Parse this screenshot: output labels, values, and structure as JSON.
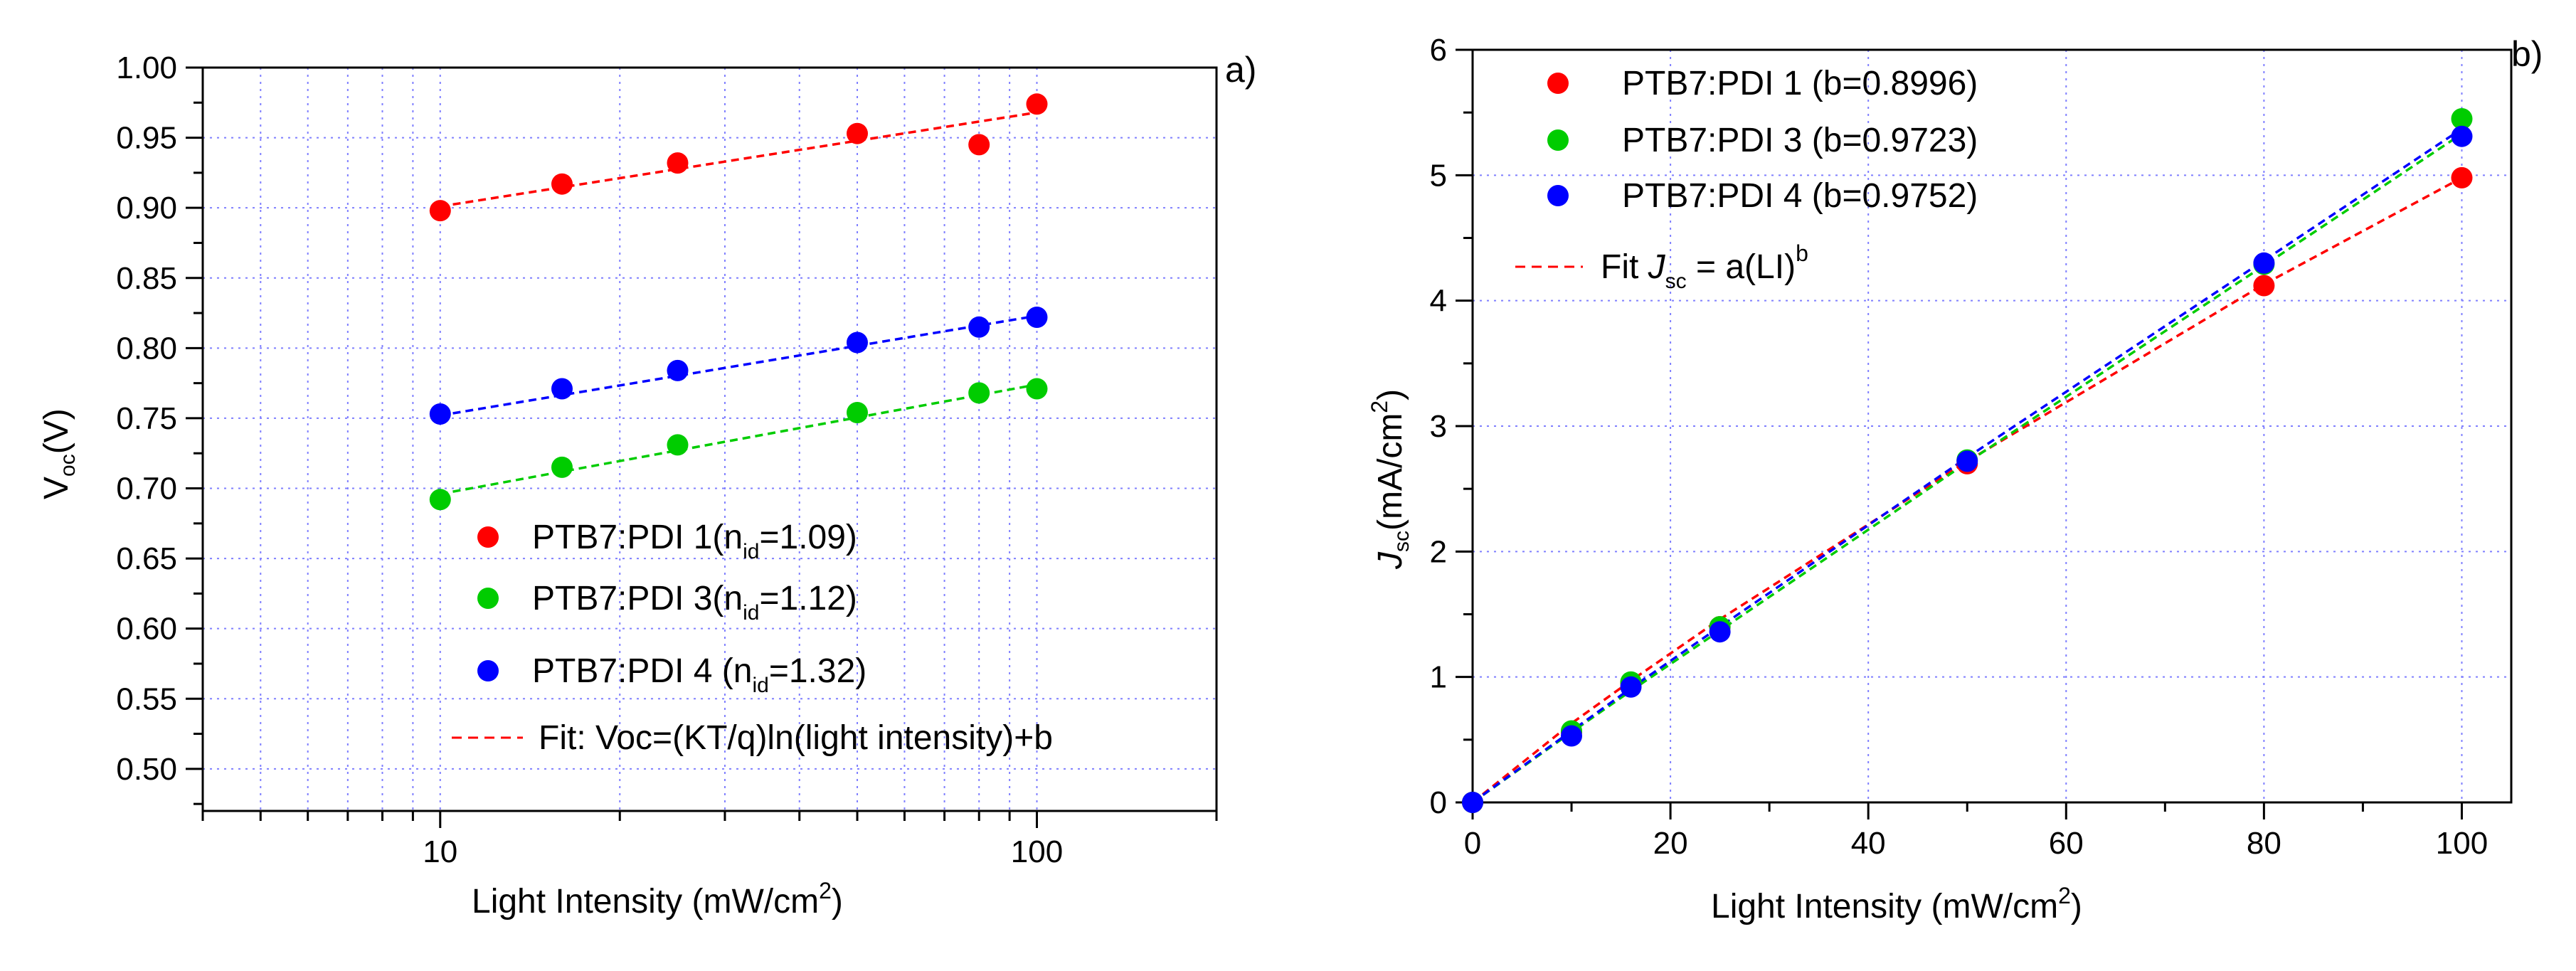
{
  "chart_data": [
    {
      "type": "scatter",
      "panel_label": "a)",
      "xscale": "log",
      "xlim": [
        4,
        200
      ],
      "ylim": [
        0.47,
        1.0
      ],
      "xticks": [
        10,
        100
      ],
      "xtick_labels": [
        "10",
        "100"
      ],
      "yticks": [
        0.5,
        0.55,
        0.6,
        0.65,
        0.7,
        0.75,
        0.8,
        0.85,
        0.9,
        0.95,
        1.0
      ],
      "ytick_labels": [
        "0.50",
        "0.55",
        "0.60",
        "0.65",
        "0.70",
        "0.75",
        "0.80",
        "0.85",
        "0.90",
        "0.95",
        "1.00"
      ],
      "xlabel": {
        "main": "Light Intensity (mW/cm",
        "sup": "2",
        "end": ")"
      },
      "ylabel": {
        "main": "V",
        "sub": "oc",
        "end": "(V)"
      },
      "grid": true,
      "legend_position": "lower-right",
      "series": [
        {
          "name": "PTB7:PDI 1",
          "legend": {
            "pre": "PTB7:PDI 1(n",
            "sub": "id",
            "post": "=1.09)"
          },
          "color": "#ff0000",
          "x": [
            10,
            16,
            25,
            50,
            80,
            100
          ],
          "y": [
            0.898,
            0.917,
            0.932,
            0.953,
            0.945,
            0.974
          ],
          "fit": {
            "x": [
              10,
              100
            ],
            "y": [
              0.901,
              0.968
            ]
          }
        },
        {
          "name": "PTB7:PDI 3",
          "legend": {
            "pre": "PTB7:PDI 3(n",
            "sub": "id",
            "post": "=1.12)"
          },
          "color": "#00cc00",
          "x": [
            10,
            16,
            25,
            50,
            80,
            100
          ],
          "y": [
            0.692,
            0.715,
            0.731,
            0.754,
            0.768,
            0.771
          ],
          "fit": {
            "x": [
              10,
              100
            ],
            "y": [
              0.696,
              0.774
            ]
          }
        },
        {
          "name": "PTB7:PDI 4",
          "legend": {
            "pre": "PTB7:PDI 4 (n",
            "sub": "id",
            "post": "=1.32)"
          },
          "color": "#0000ff",
          "x": [
            10,
            16,
            25,
            50,
            80,
            100
          ],
          "y": [
            0.753,
            0.771,
            0.784,
            0.804,
            0.815,
            0.822
          ],
          "fit": {
            "x": [
              10,
              100
            ],
            "y": [
              0.752,
              0.823
            ]
          }
        }
      ],
      "fit_legend": {
        "text": "Fit: Voc=(KT/q)ln(light intensity)+b",
        "color": "#ff0000"
      }
    },
    {
      "type": "scatter",
      "panel_label": "b)",
      "xlim": [
        0,
        105
      ],
      "ylim": [
        0,
        6
      ],
      "xticks": [
        0,
        20,
        40,
        60,
        80,
        100
      ],
      "xtick_labels": [
        "0",
        "20",
        "40",
        "60",
        "80",
        "100"
      ],
      "yticks": [
        0,
        1,
        2,
        3,
        4,
        5,
        6
      ],
      "ytick_labels": [
        "0",
        "1",
        "2",
        "3",
        "4",
        "5",
        "6"
      ],
      "xlabel": {
        "main": "Light Intensity (mW/cm",
        "sup": "2",
        "end": ")"
      },
      "ylabel": {
        "main": "J",
        "sub": "sc",
        "mid": "(mA/cm",
        "sup": "2",
        "end": ")"
      },
      "grid": true,
      "legend_position": "top-left",
      "series": [
        {
          "name": "PTB7:PDI 1",
          "legend": {
            "text": "PTB7:PDI 1 (b=0.8996)"
          },
          "color": "#ff0000",
          "x": [
            0,
            10,
            16,
            25,
            50,
            80,
            100
          ],
          "y": [
            0,
            0.56,
            0.95,
            1.4,
            2.7,
            4.12,
            4.98
          ],
          "fit": {
            "x": [
              0,
              10,
              16,
              25,
              50,
              80,
              100
            ],
            "y": [
              0,
              0.63,
              0.97,
              1.46,
              2.72,
              4.13,
              4.98
            ]
          }
        },
        {
          "name": "PTB7:PDI 3",
          "legend": {
            "text": "PTB7:PDI 3 (b=0.9723)"
          },
          "color": "#00cc00",
          "x": [
            0,
            10,
            16,
            25,
            50,
            80,
            100
          ],
          "y": [
            0,
            0.57,
            0.96,
            1.4,
            2.73,
            4.29,
            5.45
          ],
          "fit": {
            "x": [
              0,
              10,
              16,
              25,
              50,
              80,
              100
            ],
            "y": [
              0,
              0.56,
              0.89,
              1.37,
              2.71,
              4.28,
              5.33
            ]
          }
        },
        {
          "name": "PTB7:PDI 4",
          "legend": {
            "text": "PTB7:PDI 4 (b=0.9752)"
          },
          "color": "#0000ff",
          "x": [
            0,
            10,
            16,
            25,
            50,
            80,
            100
          ],
          "y": [
            0,
            0.53,
            0.92,
            1.36,
            2.72,
            4.3,
            5.31
          ],
          "fit": {
            "x": [
              0,
              10,
              16,
              25,
              50,
              80,
              100
            ],
            "y": [
              0,
              0.57,
              0.91,
              1.4,
              2.75,
              4.32,
              5.37
            ]
          }
        }
      ],
      "fit_legend": {
        "pre": "Fit ",
        "j": "J",
        "sub": "sc",
        "post": " = a(LI)",
        "sup": "b",
        "color": "#ff0000"
      }
    }
  ]
}
